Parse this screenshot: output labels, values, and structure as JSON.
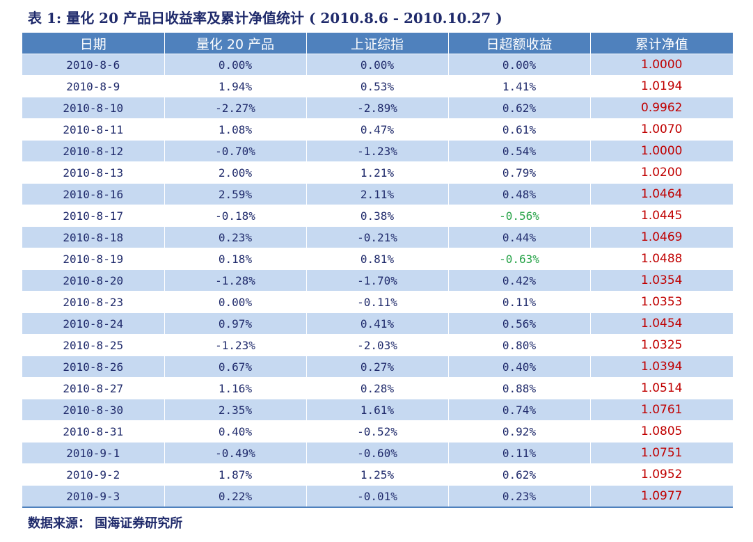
{
  "title": "表 1:  量化 20 产品日收益率及累计净值统计 ( 2010.8.6 - 2010.10.27 )",
  "source": "数据来源：  国海证券研究所",
  "colors": {
    "header_bg": "#4f81bd",
    "stripe": "#c6d9f1",
    "positive_nav": "#c00000",
    "negative_excess": "#27a348",
    "text": "#1f2a6b"
  },
  "columns": [
    "日期",
    "量化 20 产品",
    "上证综指",
    "日超额收益",
    "累计净值"
  ],
  "rows": [
    [
      "2010-8-6",
      "0.00%",
      "0.00%",
      "0.00%",
      "1.0000"
    ],
    [
      "2010-8-9",
      "1.94%",
      "0.53%",
      "1.41%",
      "1.0194"
    ],
    [
      "2010-8-10",
      "-2.27%",
      "-2.89%",
      "0.62%",
      "0.9962"
    ],
    [
      "2010-8-11",
      "1.08%",
      "0.47%",
      "0.61%",
      "1.0070"
    ],
    [
      "2010-8-12",
      "-0.70%",
      "-1.23%",
      "0.54%",
      "1.0000"
    ],
    [
      "2010-8-13",
      "2.00%",
      "1.21%",
      "0.79%",
      "1.0200"
    ],
    [
      "2010-8-16",
      "2.59%",
      "2.11%",
      "0.48%",
      "1.0464"
    ],
    [
      "2010-8-17",
      "-0.18%",
      "0.38%",
      "-0.56%",
      "1.0445"
    ],
    [
      "2010-8-18",
      "0.23%",
      "-0.21%",
      "0.44%",
      "1.0469"
    ],
    [
      "2010-8-19",
      "0.18%",
      "0.81%",
      "-0.63%",
      "1.0488"
    ],
    [
      "2010-8-20",
      "-1.28%",
      "-1.70%",
      "0.42%",
      "1.0354"
    ],
    [
      "2010-8-23",
      "0.00%",
      "-0.11%",
      "0.11%",
      "1.0353"
    ],
    [
      "2010-8-24",
      "0.97%",
      "0.41%",
      "0.56%",
      "1.0454"
    ],
    [
      "2010-8-25",
      "-1.23%",
      "-2.03%",
      "0.80%",
      "1.0325"
    ],
    [
      "2010-8-26",
      "0.67%",
      "0.27%",
      "0.40%",
      "1.0394"
    ],
    [
      "2010-8-27",
      "1.16%",
      "0.28%",
      "0.88%",
      "1.0514"
    ],
    [
      "2010-8-30",
      "2.35%",
      "1.61%",
      "0.74%",
      "1.0761"
    ],
    [
      "2010-8-31",
      "0.40%",
      "-0.52%",
      "0.92%",
      "1.0805"
    ],
    [
      "2010-9-1",
      "-0.49%",
      "-0.60%",
      "0.11%",
      "1.0751"
    ],
    [
      "2010-9-2",
      "1.87%",
      "1.25%",
      "0.62%",
      "1.0952"
    ],
    [
      "2010-9-3",
      "0.22%",
      "-0.01%",
      "0.23%",
      "1.0977"
    ]
  ]
}
